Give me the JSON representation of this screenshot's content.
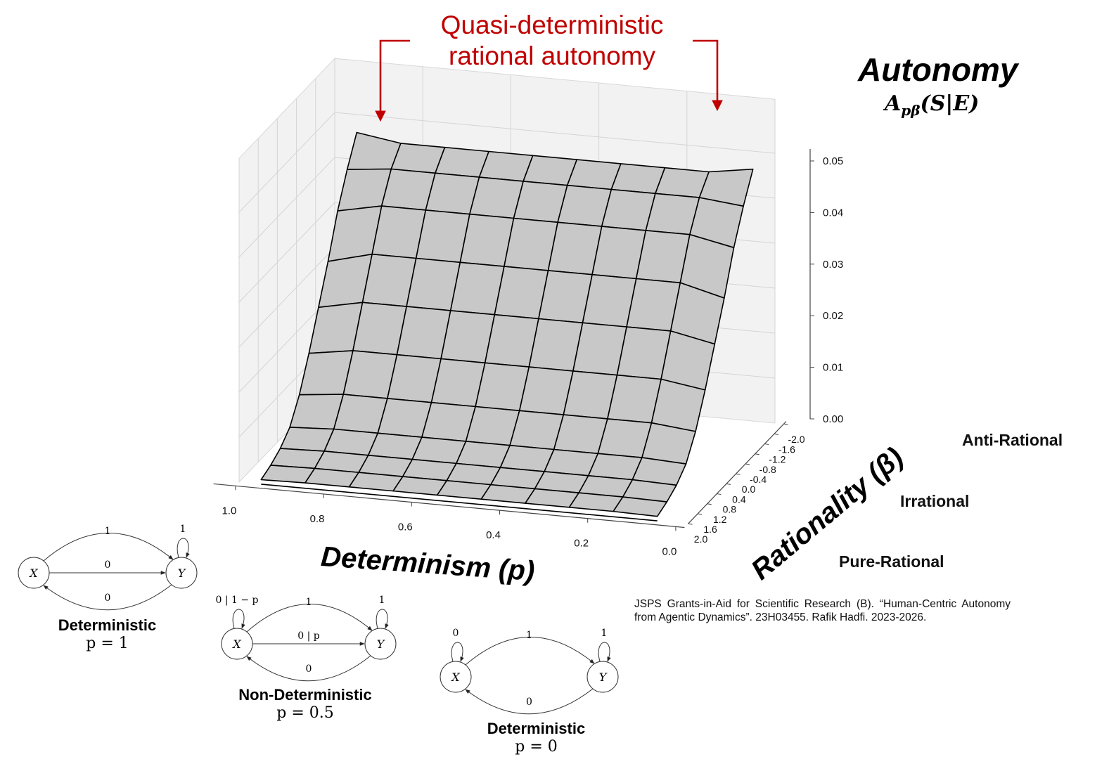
{
  "annotation": {
    "line1": "Quasi-deterministic",
    "line2": "rational autonomy",
    "color": "#c00000"
  },
  "autonomy": {
    "title": "Autonomy",
    "formula_main": "A",
    "formula_sub": "pβ",
    "formula_rest": "(S|E)"
  },
  "zones": {
    "anti": "Anti-Rational",
    "irr": "Irrational",
    "pure": "Pure-Rational"
  },
  "credit": "JSPS Grants-in-Aid for Scientific Research (B). “Human-Centric Autonomy from Agentic Dynamics”. 23H03455. Rafik Hadfi. 2023-2026.",
  "chart_data": {
    "type": "surface",
    "xlabel": "Determinism (p)",
    "ylabel": "Rationality (β)",
    "zlabel": "",
    "x_ticks": [
      "1.0",
      "0.8",
      "0.6",
      "0.4",
      "0.2",
      "0.0"
    ],
    "y_ticks": [
      "2.0",
      "1.6",
      "1.2",
      "0.8",
      "0.4",
      "0.0",
      "-0.4",
      "-0.8",
      "-1.2",
      "-1.6",
      "-2.0"
    ],
    "z_ticks": [
      "0.00",
      "0.01",
      "0.02",
      "0.03",
      "0.04",
      "0.05"
    ],
    "zlim": [
      0,
      0.058
    ],
    "p": [
      0.95,
      0.85,
      0.75,
      0.65,
      0.55,
      0.45,
      0.35,
      0.25,
      0.15,
      0.05
    ],
    "beta": [
      2.0,
      1.6,
      1.2,
      0.8,
      0.4,
      0.0,
      -0.4,
      -0.8,
      -1.2,
      -1.6,
      -2.0
    ],
    "surface_color": "#c8c8c8",
    "note": "A values estimated from the rendered surface",
    "A": [
      [
        0.001,
        0.0012,
        0.0012,
        0.0012,
        0.0012,
        0.0012,
        0.0012,
        0.0012,
        0.0012,
        0.001
      ],
      [
        0.002,
        0.0022,
        0.0022,
        0.0022,
        0.0022,
        0.0022,
        0.0022,
        0.0022,
        0.0022,
        0.002
      ],
      [
        0.0035,
        0.0038,
        0.0038,
        0.0038,
        0.0038,
        0.0038,
        0.0038,
        0.0038,
        0.0038,
        0.0035
      ],
      [
        0.006,
        0.0065,
        0.0065,
        0.0065,
        0.0065,
        0.0065,
        0.0065,
        0.0065,
        0.0065,
        0.006
      ],
      [
        0.011,
        0.012,
        0.012,
        0.012,
        0.012,
        0.012,
        0.012,
        0.012,
        0.012,
        0.011
      ],
      [
        0.018,
        0.0195,
        0.0195,
        0.0195,
        0.0195,
        0.0195,
        0.0195,
        0.0195,
        0.0195,
        0.018
      ],
      [
        0.026,
        0.028,
        0.028,
        0.028,
        0.028,
        0.028,
        0.028,
        0.028,
        0.028,
        0.026
      ],
      [
        0.034,
        0.0365,
        0.0365,
        0.0365,
        0.0365,
        0.0365,
        0.0365,
        0.0365,
        0.0365,
        0.034
      ],
      [
        0.043,
        0.045,
        0.045,
        0.045,
        0.045,
        0.045,
        0.045,
        0.045,
        0.045,
        0.043
      ],
      [
        0.05,
        0.051,
        0.051,
        0.051,
        0.051,
        0.051,
        0.051,
        0.051,
        0.051,
        0.05
      ],
      [
        0.056,
        0.0545,
        0.0545,
        0.0545,
        0.0545,
        0.0545,
        0.0545,
        0.0545,
        0.0545,
        0.056
      ]
    ]
  },
  "diagrams": [
    {
      "title": "Deterministic",
      "p": "p = 1",
      "x_node": "X",
      "y_node": "Y",
      "top": "1",
      "mid": "0",
      "bottom": "0",
      "self_x": "",
      "self_y": "1"
    },
    {
      "title": "Non-Deterministic",
      "p": "p = 0.5",
      "x_node": "X",
      "y_node": "Y",
      "top": "1",
      "mid": "0 | p",
      "bottom": "0",
      "self_x": "0 | 1 − p",
      "self_y": "1"
    },
    {
      "title": "Deterministic",
      "p": "p = 0",
      "x_node": "X",
      "y_node": "Y",
      "top": "1",
      "mid": "",
      "bottom": "0",
      "self_x": "0",
      "self_y": "1"
    }
  ]
}
